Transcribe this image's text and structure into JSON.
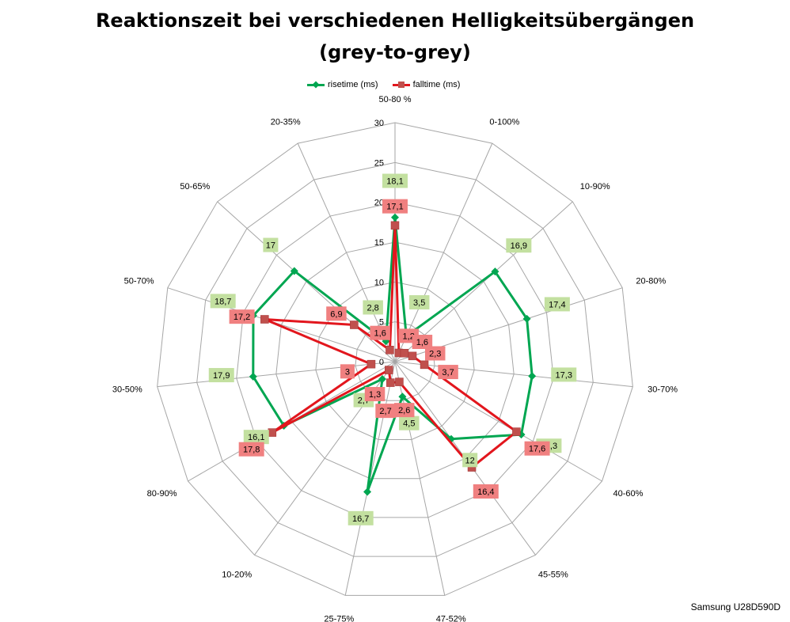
{
  "title_line1": "Reaktionszeit bei verschiedenen Helligkeitsübergängen",
  "title_line2": "(grey-to-grey)",
  "footer": "Samsung U28D590D",
  "chart_data": {
    "type": "radar",
    "categories": [
      "50-80 %",
      "0-100%",
      "10-90%",
      "20-80%",
      "30-70%",
      "40-60%",
      "45-55%",
      "47-52%",
      "25-75%",
      "10-20%",
      "80-90%",
      "30-50%",
      "50-70%",
      "50-65%",
      "20-35%"
    ],
    "rlim": [
      0,
      30
    ],
    "r_ticks": [
      0,
      5,
      10,
      15,
      20,
      25,
      30
    ],
    "series": [
      {
        "name": "risetime (ms)",
        "color": "#00a651",
        "marker": "diamond",
        "values": [
          18.1,
          3.5,
          16.9,
          17.4,
          17.3,
          18.3,
          12,
          4.5,
          16.7,
          2.7,
          16.1,
          17.9,
          18.7,
          17,
          2.8
        ],
        "labels": [
          "18,1",
          "3,5",
          "16,9",
          "17,4",
          "17,3",
          "18,3",
          "12",
          "4,5",
          "16,7",
          "2,7",
          "16,1",
          "17,9",
          "18,7",
          "17",
          "2,8"
        ]
      },
      {
        "name": "falltime (ms)",
        "color": "#e2161d",
        "marker": "square",
        "values": [
          17.1,
          1.2,
          1.6,
          2.3,
          3.7,
          17.6,
          16.4,
          2.6,
          2.7,
          1.3,
          17.8,
          3,
          17.2,
          6.9,
          1.6
        ],
        "labels": [
          "17,1",
          "1,2",
          "1,6",
          "2,3",
          "3,7",
          "17,6",
          "16,4",
          "2,6",
          "2,7",
          "1,3",
          "17,8",
          "3",
          "17,2",
          "6,9",
          "1,6"
        ]
      }
    ]
  }
}
